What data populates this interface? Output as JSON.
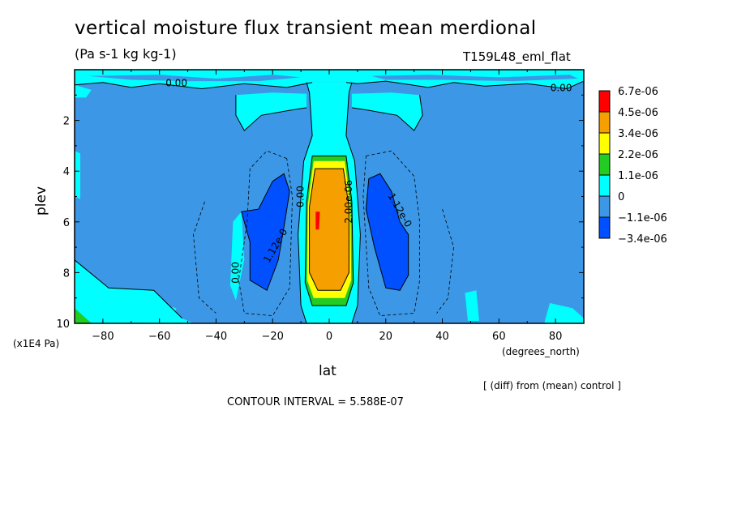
{
  "page": {
    "title": "vertical moisture flux transient mean merdional",
    "subtitle": "(Pa s-1 kg kg-1)",
    "run_id": "T159L48_eml_flat",
    "diff_note": "[ (diff) from (mean) control ]",
    "contour_interval": "CONTOUR INTERVAL = 5.588E-07"
  },
  "chart_data": {
    "type": "heatmap",
    "xlabel": "lat",
    "xunit": "(degrees_north)",
    "ylabel": "plev",
    "yunit": "(x1E4 Pa)",
    "xlim": [
      -90,
      90
    ],
    "ylim": [
      0,
      10
    ],
    "y_inverted": true,
    "x_ticks": [
      -80,
      -60,
      -40,
      -20,
      0,
      20,
      40,
      60,
      80
    ],
    "y_ticks": [
      2,
      4,
      6,
      8,
      10
    ],
    "colorbar": {
      "levels": [
        "6.7e-06",
        "4.5e-06",
        "3.4e-06",
        "2.2e-06",
        "1.1e-06",
        "0",
        "-1.1e-06",
        "-3.4e-06"
      ],
      "colors": [
        "#ff0000",
        "#f5a000",
        "#ffff00",
        "#22cc22",
        "#00ffff",
        "#3c98e6",
        "#0050ff"
      ]
    },
    "contour_labels": [
      {
        "text": "0.00",
        "lat": -54,
        "plev": 0.65
      },
      {
        "text": "0.00",
        "lat": 82,
        "plev": 0.85
      },
      {
        "text": "0.00",
        "lat": -32,
        "plev": 8.0
      },
      {
        "text": "1.12e-0",
        "lat": -18,
        "plev": 7.0
      },
      {
        "text": "1.12e-0",
        "lat": 24,
        "plev": 5.6
      },
      {
        "text": "0.00",
        "lat": -9,
        "plev": 5.0
      },
      {
        "text": "2.00e-06",
        "lat": 8,
        "plev": 5.2
      }
    ],
    "field_description_values": {
      "equatorial_max": 6.7e-06,
      "subtropical_min_south": -3.4e-06,
      "subtropical_min_north": -3.4e-06
    }
  }
}
